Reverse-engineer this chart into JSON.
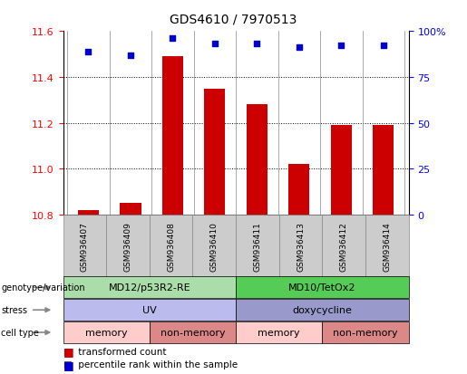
{
  "title": "GDS4610 / 7970513",
  "samples": [
    "GSM936407",
    "GSM936409",
    "GSM936408",
    "GSM936410",
    "GSM936411",
    "GSM936413",
    "GSM936412",
    "GSM936414"
  ],
  "bar_values": [
    10.82,
    10.85,
    11.49,
    11.35,
    11.28,
    11.02,
    11.19,
    11.19
  ],
  "percentile_values": [
    89,
    87,
    96,
    93,
    93,
    91,
    92,
    92
  ],
  "ylim_left": [
    10.8,
    11.6
  ],
  "ylim_right": [
    0,
    100
  ],
  "yticks_left": [
    10.8,
    11.0,
    11.2,
    11.4,
    11.6
  ],
  "yticks_right": [
    0,
    25,
    50,
    75,
    100
  ],
  "bar_color": "#cc0000",
  "point_color": "#0000cc",
  "bar_width": 0.5,
  "groups": {
    "genotype": [
      {
        "label": "MD12/p53R2-RE",
        "start": 0,
        "end": 4,
        "color": "#aaddaa"
      },
      {
        "label": "MD10/TetOx2",
        "start": 4,
        "end": 8,
        "color": "#55cc55"
      }
    ],
    "stress": [
      {
        "label": "UV",
        "start": 0,
        "end": 4,
        "color": "#bbbbee"
      },
      {
        "label": "doxycycline",
        "start": 4,
        "end": 8,
        "color": "#9999cc"
      }
    ],
    "cell_type": [
      {
        "label": "memory",
        "start": 0,
        "end": 2,
        "color": "#ffcccc"
      },
      {
        "label": "non-memory",
        "start": 2,
        "end": 4,
        "color": "#dd8888"
      },
      {
        "label": "memory",
        "start": 4,
        "end": 6,
        "color": "#ffcccc"
      },
      {
        "label": "non-memory",
        "start": 6,
        "end": 8,
        "color": "#dd8888"
      }
    ]
  },
  "row_labels": [
    "genotype/variation",
    "stress",
    "cell type"
  ],
  "legend_items": [
    {
      "label": "transformed count",
      "color": "#cc0000"
    },
    {
      "label": "percentile rank within the sample",
      "color": "#0000cc"
    }
  ],
  "sample_label_bg": "#cccccc",
  "title_fontsize": 10,
  "axis_fontsize": 8,
  "label_fontsize": 8,
  "row_fontsize": 8
}
